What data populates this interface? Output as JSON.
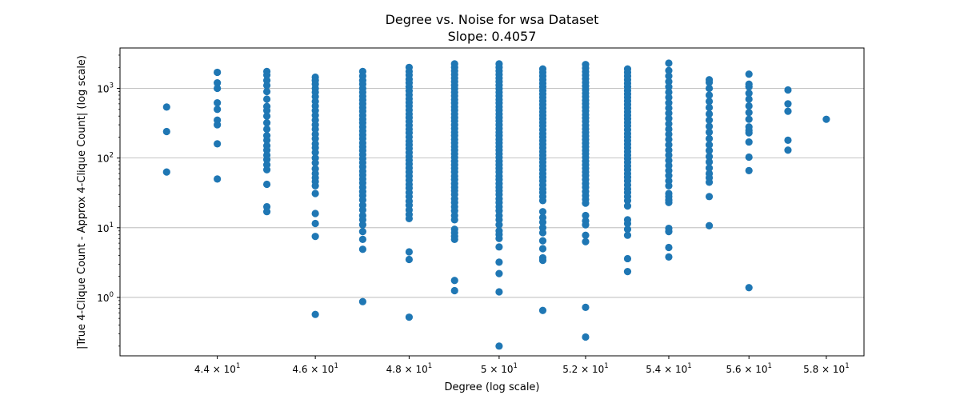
{
  "chart_data": {
    "type": "scatter",
    "title": "Degree vs. Noise for wsa Dataset",
    "subtitle": "Slope: 0.4057",
    "xlabel": "Degree (log scale)",
    "ylabel": "|True 4-Clique Count - Approx 4-Clique Count| (log scale)",
    "x_scale": "log",
    "y_scale": "log",
    "xlim": [
      42.1,
      59.0
    ],
    "ylim": [
      0.145,
      3800
    ],
    "x_ticks": [
      44,
      46,
      48,
      50,
      52,
      54,
      56,
      58
    ],
    "x_tick_labels": [
      {
        "base": "4.4",
        "exp": "1"
      },
      {
        "base": "4.6",
        "exp": "1"
      },
      {
        "base": "4.8",
        "exp": "1"
      },
      {
        "base": "5",
        "exp": "1"
      },
      {
        "base": "5.2",
        "exp": "1"
      },
      {
        "base": "5.4",
        "exp": "1"
      },
      {
        "base": "5.6",
        "exp": "1"
      },
      {
        "base": "5.8",
        "exp": "1"
      }
    ],
    "y_ticks": [
      1,
      10,
      100,
      1000
    ],
    "y_tick_labels": [
      {
        "base": "10",
        "exp": "0"
      },
      {
        "base": "10",
        "exp": "1"
      },
      {
        "base": "10",
        "exp": "2"
      },
      {
        "base": "10",
        "exp": "3"
      }
    ],
    "grid": "horizontal major",
    "marker_color": "#1f77b4",
    "columns": [
      {
        "x": 43,
        "y": [
          540,
          240,
          63
        ]
      },
      {
        "x": 44,
        "y": [
          1700,
          1200,
          1000,
          620,
          500,
          350,
          300,
          160,
          50
        ]
      },
      {
        "x": 45,
        "y": [
          1750,
          1550,
          1300,
          1100,
          900,
          700,
          550,
          480,
          400,
          320,
          260,
          210,
          180,
          150,
          130,
          110,
          95,
          80,
          68,
          42,
          20,
          17
        ]
      },
      {
        "x": 46,
        "y": [
          1450,
          1300,
          1150,
          1000,
          880,
          760,
          650,
          560,
          480,
          410,
          350,
          300,
          260,
          220,
          190,
          160,
          140,
          120,
          100,
          85,
          70,
          60,
          52,
          46,
          40,
          31,
          16,
          11.5,
          7.5,
          0.57
        ]
      },
      {
        "x": 47,
        "y": [
          1750,
          1500,
          1300,
          1150,
          1000,
          880,
          770,
          680,
          600,
          530,
          470,
          410,
          360,
          320,
          280,
          245,
          215,
          190,
          165,
          145,
          128,
          112,
          98,
          86,
          75,
          65,
          57,
          50,
          44,
          38,
          33,
          29,
          25,
          21,
          18,
          15,
          13,
          11,
          8.8,
          6.8,
          4.9,
          0.87
        ]
      },
      {
        "x": 48,
        "y": [
          2000,
          1750,
          1550,
          1350,
          1200,
          1050,
          920,
          810,
          710,
          630,
          560,
          490,
          430,
          380,
          335,
          295,
          260,
          230,
          200,
          175,
          155,
          137,
          120,
          106,
          93,
          82,
          72,
          63,
          55,
          48,
          42,
          37,
          32,
          28,
          24,
          21,
          18,
          15.5,
          13.5,
          4.5,
          3.5,
          0.52
        ]
      },
      {
        "x": 49,
        "y": [
          2250,
          2000,
          1780,
          1580,
          1400,
          1250,
          1110,
          990,
          880,
          780,
          690,
          615,
          545,
          485,
          430,
          380,
          340,
          300,
          265,
          235,
          210,
          185,
          165,
          146,
          130,
          115,
          102,
          90,
          80,
          71,
          63,
          55,
          49,
          43,
          38,
          34,
          30,
          26,
          23,
          20,
          17.5,
          15,
          13,
          9.5,
          8.5,
          7.5,
          6.8,
          1.75,
          1.25
        ]
      },
      {
        "x": 50,
        "y": [
          2250,
          2000,
          1780,
          1580,
          1400,
          1250,
          1110,
          990,
          880,
          780,
          690,
          615,
          545,
          485,
          430,
          380,
          340,
          300,
          265,
          235,
          210,
          185,
          165,
          146,
          130,
          115,
          102,
          90,
          80,
          71,
          63,
          55,
          49,
          43,
          38,
          34,
          30,
          26,
          23,
          20,
          17.5,
          15,
          13,
          11,
          9,
          8,
          7,
          5.3,
          3.2,
          2.2,
          1.2,
          0.2
        ]
      },
      {
        "x": 51,
        "y": [
          1900,
          1700,
          1500,
          1330,
          1180,
          1050,
          930,
          830,
          740,
          660,
          585,
          520,
          460,
          410,
          365,
          325,
          290,
          255,
          225,
          200,
          178,
          158,
          140,
          124,
          110,
          98,
          87,
          77,
          68,
          60,
          53,
          47,
          41,
          36,
          32,
          28,
          24.5,
          17,
          14,
          12,
          10,
          8.5,
          6.5,
          5,
          3.7,
          3.4,
          0.65
        ]
      },
      {
        "x": 52,
        "y": [
          2200,
          1950,
          1730,
          1540,
          1370,
          1220,
          1080,
          960,
          855,
          760,
          675,
          600,
          535,
          475,
          420,
          375,
          335,
          295,
          262,
          233,
          207,
          184,
          163,
          145,
          129,
          115,
          102,
          90,
          80,
          71,
          63,
          56,
          49,
          43,
          38,
          33,
          29,
          25.5,
          22.5,
          15,
          12.5,
          11,
          7.8,
          6.3,
          0.72,
          0.27
        ]
      },
      {
        "x": 53,
        "y": [
          1900,
          1700,
          1500,
          1330,
          1180,
          1050,
          930,
          830,
          740,
          660,
          585,
          520,
          460,
          410,
          365,
          325,
          290,
          255,
          225,
          200,
          178,
          158,
          140,
          124,
          110,
          98,
          87,
          77,
          68,
          60,
          53,
          47,
          41,
          36,
          32,
          28,
          24.5,
          20.5,
          13,
          11.5,
          9.5,
          7.8,
          3.6,
          2.35
        ]
      },
      {
        "x": 54,
        "y": [
          2300,
          1800,
          1500,
          1250,
          1050,
          880,
          740,
          620,
          520,
          440,
          370,
          310,
          260,
          220,
          185,
          155,
          130,
          110,
          92,
          78,
          66,
          56,
          47,
          40,
          31,
          28,
          25,
          23,
          9.8,
          8.8,
          5.2,
          3.8
        ]
      },
      {
        "x": 55,
        "y": [
          1330,
          1220,
          1000,
          800,
          650,
          530,
          430,
          350,
          285,
          235,
          190,
          155,
          128,
          105,
          88,
          72,
          60,
          52,
          45,
          28,
          10.7
        ]
      },
      {
        "x": 56,
        "y": [
          1600,
          1150,
          1050,
          850,
          700,
          560,
          450,
          360,
          280,
          250,
          230,
          170,
          103,
          66,
          1.38
        ]
      },
      {
        "x": 57,
        "y": [
          950,
          600,
          470,
          180,
          130
        ]
      },
      {
        "x": 58,
        "y": [
          360
        ]
      }
    ]
  }
}
